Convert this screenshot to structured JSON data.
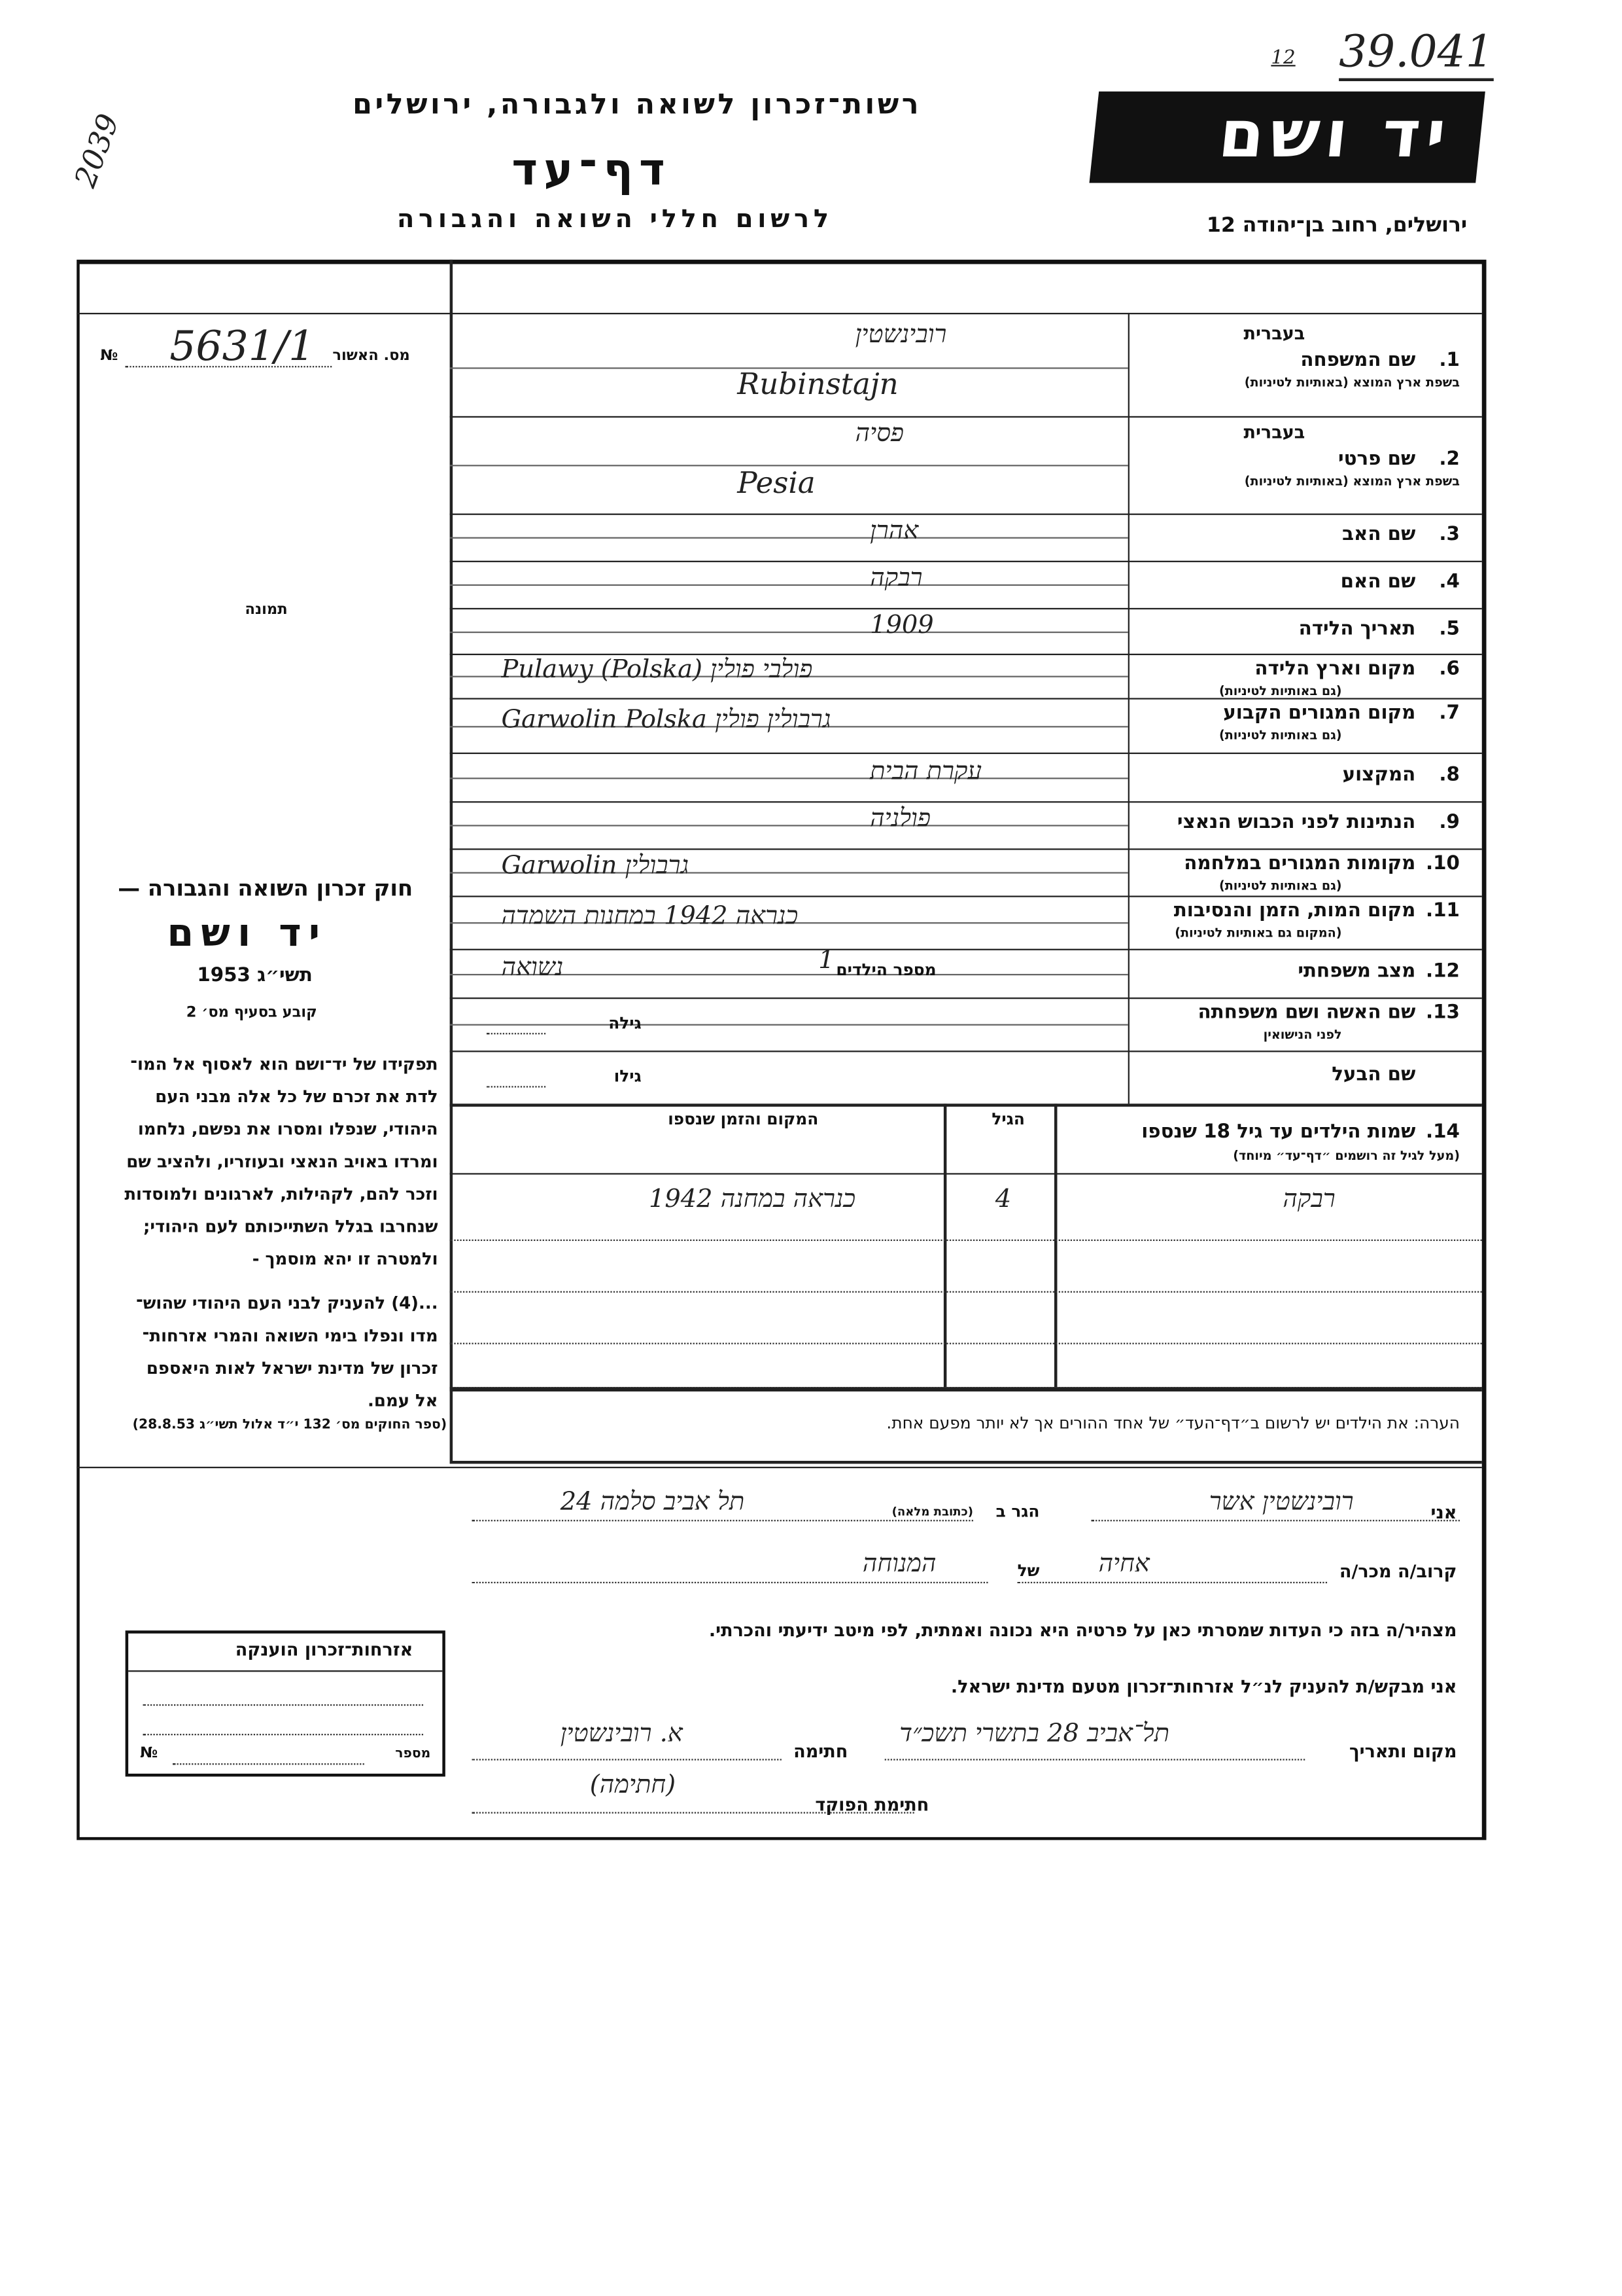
{
  "header": {
    "authority": "רשות־זכרון לשואה ולגבורה, ירושלים",
    "title": "דף־עד",
    "subtitle": "לרשום חללי השואה והגבורה",
    "logo": "יד ושם",
    "address": "ירושלים, רחוב בן־יהודה 12",
    "file_number_prefix": "12",
    "file_number": "39.041",
    "stamp_number": "2039"
  },
  "left": {
    "approval_label": "מס. האשור",
    "approval_no_sign": "№",
    "approval_value": "5631/1",
    "photo_label": "תמונה",
    "law_title": "חוק זכרון השואה והגבורה —",
    "law_name": "יד ושם",
    "law_year": "תשי״ג 1953",
    "law_clause": "קובע בסעיף מס׳ 2",
    "law_text_1": [
      "תפקידו של יד־ושם הוא לאסוף אל המו־",
      "לדת את זכרם של כל אלה מבני העם",
      "היהודי, שנפלו ומסרו את נפשם, נלחמו",
      "ומרדו באויב הנאצי ובעוזריו, ולהציב שם",
      "וזכר להם, לקהילות, לארגונים ולמוסדות",
      "שנחרבו בגלל השתייכותם לעם היהודי;",
      "ולמטרה זו יהא מוסמך -"
    ],
    "law_text_2": [
      "...(4) להעניק לבני העם היהודי שהוש־",
      "מדו ונפלו בימי השואה והמרי אזרחות־",
      "זכרון של מדינת ישראל לאות היאספם",
      "אל עמם."
    ],
    "law_source": "(ספר החוקים מס׳ 132 י״ד אלול תשי״ג 28.8.53)",
    "citizenship_title": "אזרחות־זכרון הוענקה",
    "citizenship_number": "מספר",
    "citizenship_no_sign": "№"
  },
  "fields": [
    {
      "num": "1.",
      "label": "שם המשפחה",
      "hebrew_tag": "בעברית",
      "sub": "בשפת ארץ המוצא (באותיות לטיניות)",
      "value_he": "רובינשטין",
      "value_latin": "Rubinstajn"
    },
    {
      "num": "2.",
      "label": "שם פרטי",
      "hebrew_tag": "בעברית",
      "sub": "בשפת ארץ המוצא (באותיות לטיניות)",
      "value_he": "פסיה",
      "value_latin": "Pesia"
    },
    {
      "num": "3.",
      "label": "שם האב",
      "value": "אהרן"
    },
    {
      "num": "4.",
      "label": "שם האם",
      "value": "רבקה"
    },
    {
      "num": "5.",
      "label": "תאריך הלידה",
      "value": "1909"
    },
    {
      "num": "6.",
      "label": "מקום וארץ הלידה",
      "sub": "(גם באותיות לטיניות)",
      "value": "Pulawy (Polska)  פולבי פולין"
    },
    {
      "num": "7.",
      "label": "מקום המגורים הקבוע",
      "sub": "(גם באותיות לטיניות)",
      "value": "Garwolin Polska  גרבולין פולין"
    },
    {
      "num": "8.",
      "label": "המקצוע",
      "value": "עקרת הבית"
    },
    {
      "num": "9.",
      "label": "הנתינות לפני הכבוש הנאצי",
      "value": "פולניה"
    },
    {
      "num": "10.",
      "label": "מקומות המגורים במלחמה",
      "sub": "(גם באותיות לטיניות)",
      "value": "Garwolin  גרבולין"
    },
    {
      "num": "11.",
      "label": "מקום המות, הזמן והנסיבות",
      "sub": "(המקום גם באותיות לטיניות)",
      "value": "כנראה 1942 במחנות השמדה"
    },
    {
      "num": "12.",
      "label": "מצב משפחתי",
      "value": "נשואה",
      "children_label": "מספר הילדים",
      "children_value": "1"
    },
    {
      "num": "13.",
      "label": "שם האשה ושם משפחתה",
      "sub": "לפני הנישואין",
      "age_label": "גילה"
    },
    {
      "num": "",
      "label": "שם הבעל",
      "age_label": "גילו"
    }
  ],
  "children": {
    "num": "14.",
    "label": "שמות הילדים עד גיל 18 שנספו",
    "sub": "(מעל לגיל זה רושמים ״דף־עד״ מיוחד)",
    "age_header": "הגיל",
    "place_header": "המקום והזמן שנספו",
    "rows": [
      {
        "name": "רבקה",
        "age": "4",
        "place": "כנראה במחנה 1942"
      }
    ]
  },
  "note": "הערה: את הילדים יש לרשום ב״דף־העד״ של אחד ההורים אך לא יותר מפעם אחת.",
  "declaration": {
    "i_label": "אני",
    "i_value": "רובינשטין אשר",
    "resident_label": "הגר ב",
    "address_hint": "(כתובת מלאה)",
    "address_value": "תל אביב סלמה 24",
    "relative_label": "קרוב/ה מכר/ה",
    "relation_value": "אחיה",
    "of_label": "של",
    "of_value": "המנוחה",
    "statement": "מצהיר/ה בזה כי העדות שמסרתי כאן על פרטיה היא נכונה ואמתית, לפי מיטב ידיעתי והכרתי.",
    "request": "אני מבקש/ת להעניק לנ״ל אזרחות־זכרון מטעם מדינת ישראל.",
    "place_date_label": "מקום ותאריך",
    "place_date_value": "תל־אביב 28 בתשרי תשכ״ד",
    "signature_label": "חתימה",
    "signature_value": "א. רובינשטין",
    "officer_label": "חתימת הפוקד",
    "officer_value": "(חתימה)"
  }
}
